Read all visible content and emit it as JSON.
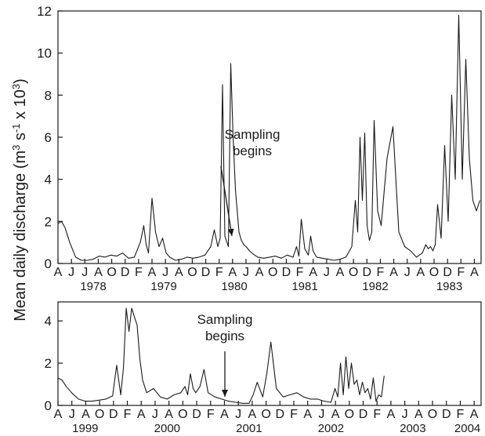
{
  "colors": {
    "line": "#1a1a1a",
    "axis": "#1a1a1a",
    "background": "#ffffff"
  },
  "ylabel_parts": [
    "Mean daily discharge (m",
    "3",
    " s",
    "-1",
    " x 10",
    "3",
    ")"
  ],
  "chart_data": [
    {
      "type": "line",
      "panel": "top",
      "ylim": [
        0,
        12
      ],
      "yticks": [
        "0",
        "2",
        "4",
        "6",
        "8",
        "10",
        "12"
      ],
      "month_labels": [
        "A",
        "J",
        "J",
        "A",
        "O",
        "D",
        "F",
        "A",
        "J",
        "A",
        "O",
        "D",
        "F",
        "A",
        "J",
        "A",
        "O",
        "D",
        "F",
        "A",
        "J",
        "A",
        "O",
        "D",
        "F",
        "A",
        "J",
        "A",
        "O",
        "D",
        "F",
        "A"
      ],
      "year_labels": [
        "1978",
        "1979",
        "1980",
        "1981",
        "1982",
        "1983"
      ],
      "annotation": {
        "line1": "Sampling",
        "line2": "begins",
        "points_to_x": 16.2
      },
      "series": [
        {
          "x": [
            0,
            0.3,
            0.6,
            1,
            1.5,
            2,
            2.5,
            3,
            3.5,
            4,
            4.5,
            5,
            5.5,
            6,
            6.5,
            7,
            7.3,
            7.5,
            7.7,
            8,
            8.3,
            8.6,
            8.9,
            9.2,
            9.5,
            10,
            10.5,
            11,
            11.5,
            12,
            12.5,
            13,
            13.3,
            13.6,
            13.8,
            14,
            14.2,
            14.5,
            14.7,
            14.9,
            15.1,
            15.4,
            15.6,
            15.8,
            16,
            16.3,
            16.6,
            17,
            17.5,
            18,
            18.5,
            19,
            19.5,
            20,
            20.3,
            20.5,
            20.7,
            21,
            21.3,
            21.5,
            21.7,
            22,
            22.5,
            23,
            23.5,
            24,
            24.5,
            25,
            25.3,
            25.5,
            25.7,
            25.9,
            26.1,
            26.3,
            26.5,
            26.7,
            26.9,
            27.2,
            27.5,
            28,
            28.5,
            29,
            29.5,
            30,
            30.5,
            31,
            31.3,
            31.5,
            31.7,
            31.9,
            32.1,
            32.3,
            32.6,
            32.9,
            33.2,
            33.5,
            33.8,
            34.1,
            34.4,
            34.7,
            35,
            35.3,
            35.6,
            35.9
          ],
          "values": [
            1.9,
            2.0,
            1.7,
            1.0,
            0.3,
            0.15,
            0.15,
            0.2,
            0.35,
            0.3,
            0.4,
            0.35,
            0.5,
            0.25,
            0.3,
            1.0,
            1.8,
            0.9,
            0.5,
            3.1,
            1.5,
            0.8,
            1.2,
            0.5,
            0.3,
            0.15,
            0.2,
            0.3,
            0.25,
            0.3,
            0.4,
            0.8,
            1.6,
            0.8,
            1.2,
            8.5,
            1.3,
            0.8,
            9.5,
            6.0,
            3.5,
            1.5,
            1.1,
            0.9,
            0.8,
            0.6,
            0.45,
            0.3,
            0.25,
            0.3,
            0.35,
            0.25,
            0.4,
            0.3,
            0.8,
            0.35,
            2.1,
            0.7,
            0.4,
            1.3,
            0.6,
            0.3,
            0.25,
            0.2,
            0.15,
            0.2,
            0.3,
            0.8,
            3.0,
            1.5,
            6.0,
            3.0,
            6.2,
            1.8,
            1.1,
            1.5,
            6.8,
            2.5,
            1.8,
            5.0,
            6.5,
            1.5,
            0.8,
            0.6,
            0.3,
            0.5,
            0.9,
            0.7,
            0.8,
            0.6,
            0.9,
            2.8,
            1.2,
            5.6,
            2.0,
            8.0,
            4.0,
            11.8,
            4.0,
            9.7,
            5.0,
            3.0,
            2.5,
            3.0
          ]
        }
      ]
    },
    {
      "type": "line",
      "panel": "bottom",
      "ylim": [
        0,
        4.9
      ],
      "yticks": [
        "0",
        "2",
        "4"
      ],
      "month_labels": [
        "A",
        "J",
        "A",
        "O",
        "D",
        "F",
        "A",
        "J",
        "A",
        "O",
        "D",
        "F",
        "A",
        "J",
        "A",
        "O",
        "D",
        "F",
        "A",
        "J",
        "A",
        "O",
        "D",
        "F",
        "A",
        "J",
        "A",
        "O",
        "D",
        "F",
        "A"
      ],
      "year_labels": [
        "1999",
        "2000",
        "2001",
        "2002",
        "2003",
        "2004"
      ],
      "annotation": {
        "line1": "Sampling",
        "line2": "begins",
        "points_to_x": 10.4
      },
      "series": [
        {
          "x": [
            0,
            0.3,
            0.6,
            1,
            1.5,
            2,
            2.5,
            3,
            3.5,
            4,
            4.3,
            4.6,
            4.8,
            5,
            5.2,
            5.4,
            5.6,
            5.8,
            6,
            6.2,
            6.5,
            7,
            7.5,
            8,
            8.5,
            9,
            9.3,
            9.5,
            9.7,
            9.9,
            10.1,
            10.4,
            10.7,
            11,
            11.5,
            12,
            12.5,
            13,
            13.5,
            14,
            14.3,
            14.6,
            15,
            15.3,
            15.6,
            16,
            16.5,
            17,
            17.5,
            18,
            18.5,
            19,
            19.5,
            20,
            20.3,
            20.5,
            20.7,
            20.9,
            21.1,
            21.3,
            21.5,
            21.7,
            21.9,
            22.1,
            22.3,
            22.5,
            22.7,
            22.9,
            23.1,
            23.3,
            23.5,
            23.7,
            23.9
          ],
          "values": [
            1.3,
            1.2,
            0.9,
            0.6,
            0.3,
            0.2,
            0.2,
            0.25,
            0.3,
            0.45,
            1.9,
            0.5,
            1.8,
            4.6,
            3.5,
            4.6,
            4.2,
            3.8,
            2.2,
            1.2,
            0.6,
            0.8,
            0.4,
            0.3,
            0.5,
            0.6,
            0.9,
            0.5,
            1.5,
            0.8,
            0.6,
            0.9,
            1.7,
            0.6,
            0.4,
            0.3,
            0.2,
            0.15,
            0.1,
            0.1,
            0.5,
            1.1,
            0.4,
            1.5,
            3.0,
            0.8,
            0.4,
            0.5,
            0.6,
            0.4,
            0.3,
            0.3,
            0.2,
            0.15,
            0.8,
            0.4,
            2.0,
            0.5,
            2.3,
            0.8,
            2.0,
            1.0,
            1.2,
            0.5,
            1.1,
            0.6,
            0.8,
            0.3,
            1.3,
            0.2,
            0.5,
            0.4,
            1.4
          ]
        }
      ]
    }
  ]
}
